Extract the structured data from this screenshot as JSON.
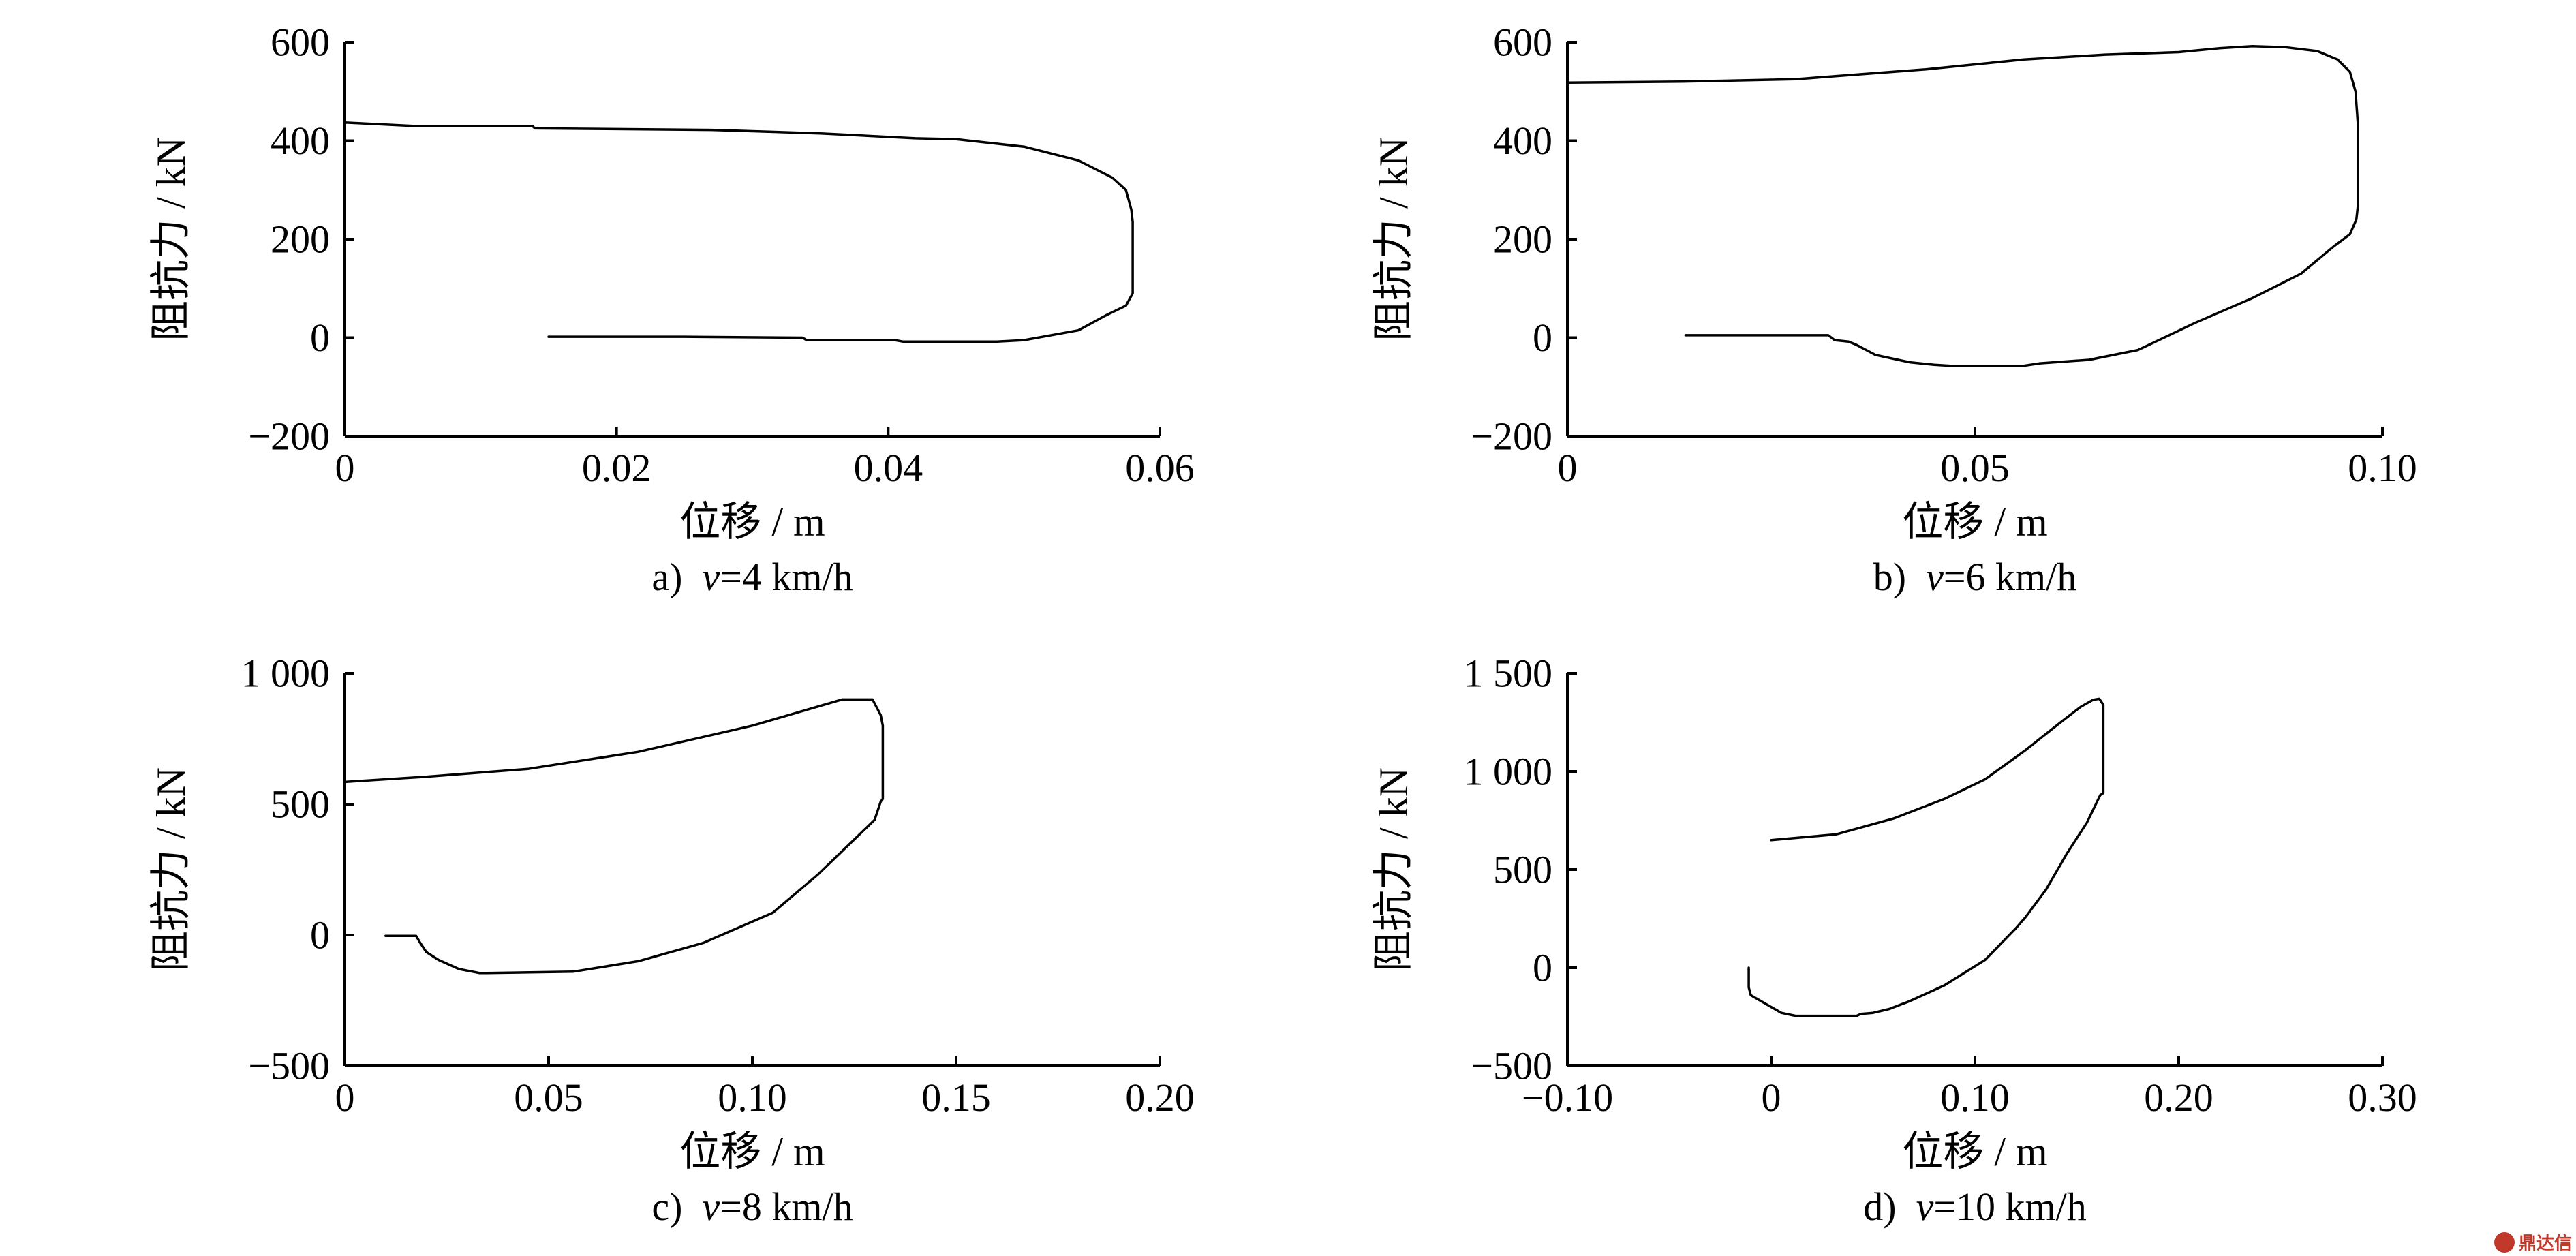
{
  "chart_data": [
    {
      "type": "line",
      "panel_label": "a)",
      "caption": "v=4 km/h",
      "caption_var": "v",
      "caption_rest": "=4 km/h",
      "xlabel": "位移 / m",
      "ylabel": "阻抗力 / kN",
      "xlim": [
        0,
        0.06
      ],
      "ylim": [
        -200,
        600
      ],
      "xticks": [
        0,
        0.02,
        0.04,
        0.06
      ],
      "xtick_labels": [
        "0",
        "0.02",
        "0.04",
        "0.06"
      ],
      "yticks": [
        -200,
        0,
        200,
        400,
        600
      ],
      "ytick_labels": [
        "−200",
        "0",
        "200",
        "400",
        "600"
      ],
      "grid": false,
      "series": [
        {
          "x": [
            0,
            0.005,
            0.0138,
            0.014,
            0.027,
            0.035,
            0.042,
            0.045,
            0.05,
            0.054,
            0.0565,
            0.0575,
            0.0579,
            0.058,
            0.058,
            0.058,
            0.0575,
            0.056,
            0.054,
            0.05,
            0.048,
            0.0411,
            0.0405,
            0.034,
            0.0337,
            0.025,
            0.015
          ],
          "y": [
            437,
            430,
            430,
            425,
            422,
            415,
            405,
            403,
            388,
            360,
            325,
            300,
            260,
            235,
            170,
            90,
            65,
            45,
            15,
            -5,
            -8,
            -8,
            -5,
            -5,
            0,
            2,
            2
          ]
        }
      ]
    },
    {
      "type": "line",
      "panel_label": "b)",
      "caption": "v=6 km/h",
      "caption_var": "v",
      "caption_rest": "=6 km/h",
      "xlabel": "位移 / m",
      "ylabel": "阻抗力 / kN",
      "xlim": [
        0,
        0.1
      ],
      "ylim": [
        -200,
        600
      ],
      "xticks": [
        0,
        0.05,
        0.1
      ],
      "xtick_labels": [
        "0",
        "0.05",
        "0.10"
      ],
      "yticks": [
        -200,
        0,
        200,
        400,
        600
      ],
      "ytick_labels": [
        "−200",
        "0",
        "200",
        "400",
        "600"
      ],
      "grid": false,
      "series": [
        {
          "x": [
            0,
            0.014,
            0.028,
            0.044,
            0.056,
            0.066,
            0.075,
            0.08,
            0.084,
            0.088,
            0.092,
            0.0945,
            0.096,
            0.0967,
            0.097,
            0.097,
            0.0968,
            0.096,
            0.094,
            0.09,
            0.084,
            0.077,
            0.07,
            0.064,
            0.058,
            0.056,
            0.055,
            0.047,
            0.045,
            0.042,
            0.0378,
            0.0355,
            0.0345,
            0.0328,
            0.032,
            0.02,
            0.0145
          ],
          "y": [
            518,
            520,
            525,
            545,
            565,
            575,
            580,
            588,
            592,
            590,
            582,
            565,
            540,
            500,
            430,
            270,
            240,
            210,
            185,
            130,
            80,
            30,
            -25,
            -45,
            -52,
            -57,
            -57,
            -57,
            -55,
            -50,
            -35,
            -15,
            -8,
            -5,
            5,
            5,
            5
          ]
        }
      ]
    },
    {
      "type": "line",
      "panel_label": "c)",
      "caption": "v=8 km/h",
      "caption_var": "v",
      "caption_rest": "=8 km/h",
      "xlabel": "位移 / m",
      "ylabel": "阻抗力 / kN",
      "xlim": [
        0,
        0.2
      ],
      "ylim": [
        -500,
        1000
      ],
      "xticks": [
        0,
        0.05,
        0.1,
        0.15,
        0.2
      ],
      "xtick_labels": [
        "0",
        "0.05",
        "0.10",
        "0.15",
        "0.20"
      ],
      "yticks": [
        -500,
        0,
        500,
        1000
      ],
      "ytick_labels": [
        "−500",
        "0",
        "500",
        "1 000"
      ],
      "grid": false,
      "series": [
        {
          "x": [
            0,
            0.02,
            0.045,
            0.072,
            0.1,
            0.122,
            0.1295,
            0.1315,
            0.132,
            0.132,
            0.1315,
            0.13,
            0.124,
            0.116,
            0.105,
            0.088,
            0.072,
            0.064,
            0.056,
            0.035,
            0.033,
            0.028,
            0.023,
            0.02,
            0.0185,
            0.0175,
            0.01
          ],
          "y": [
            585,
            605,
            635,
            700,
            800,
            900,
            900,
            840,
            800,
            520,
            510,
            440,
            350,
            230,
            85,
            -30,
            -100,
            -120,
            -140,
            -145,
            -145,
            -130,
            -95,
            -65,
            -30,
            -3,
            -3
          ]
        }
      ]
    },
    {
      "type": "line",
      "panel_label": "d)",
      "caption": "v=10 km/h",
      "caption_var": "v",
      "caption_rest": "=10 km/h",
      "xlabel": "位移 / m",
      "ylabel": "阻抗力 / kN",
      "xlim": [
        -0.1,
        0.3
      ],
      "ylim": [
        -500,
        1500
      ],
      "xticks": [
        -0.1,
        0,
        0.1,
        0.2,
        0.3
      ],
      "xtick_labels": [
        "−0.10",
        "0",
        "0.10",
        "0.20",
        "0.30"
      ],
      "yticks": [
        -500,
        0,
        500,
        1000,
        1500
      ],
      "ytick_labels": [
        "−500",
        "0",
        "500",
        "1 000",
        "1 500"
      ],
      "grid": false,
      "series": [
        {
          "x": [
            0,
            0.032,
            0.06,
            0.085,
            0.105,
            0.125,
            0.142,
            0.152,
            0.158,
            0.161,
            0.163,
            0.163,
            0.1615,
            0.1615,
            0.155,
            0.145,
            0.135,
            0.125,
            0.12,
            0.105,
            0.085,
            0.068,
            0.058,
            0.05,
            0.044,
            0.042,
            0.012,
            0.005,
            -0.005,
            -0.01,
            -0.011,
            -0.011
          ],
          "y": [
            650,
            680,
            760,
            860,
            960,
            1110,
            1250,
            1330,
            1365,
            1370,
            1340,
            890,
            880,
            880,
            740,
            580,
            400,
            260,
            200,
            40,
            -90,
            -170,
            -210,
            -230,
            -235,
            -245,
            -245,
            -230,
            -170,
            -140,
            -100,
            0
          ]
        }
      ]
    }
  ],
  "watermark": {
    "text": "鼎达信",
    "color": "#c0392b"
  }
}
